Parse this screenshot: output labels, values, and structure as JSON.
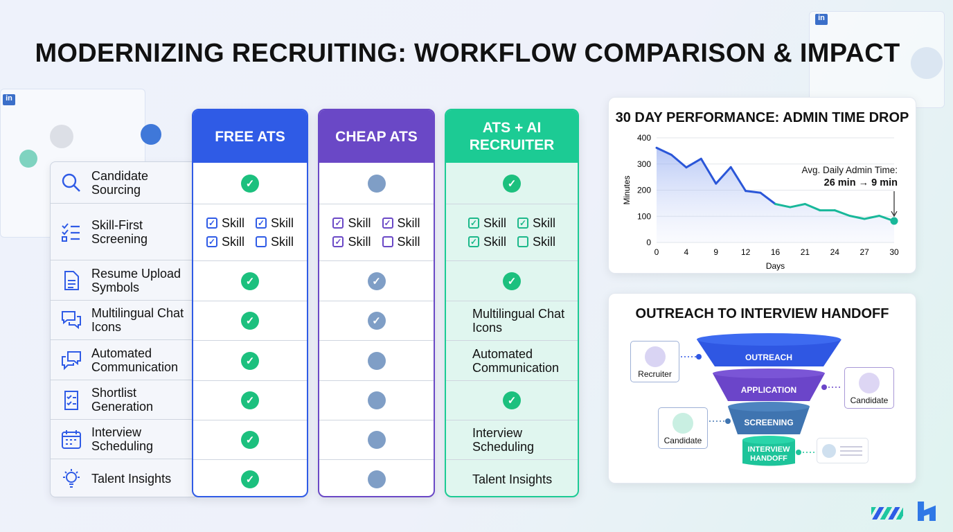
{
  "title": "MODERNIZING RECRUITING: WORKFLOW COMPARISON & IMPACT",
  "decor": {
    "linkedin_badge": "in"
  },
  "table": {
    "columns": [
      {
        "label": "FREE ATS",
        "color": "#2f5be6"
      },
      {
        "label": "CHEAP ATS",
        "color": "#6a48c6"
      },
      {
        "label": "ATS + AI RECRUITER",
        "color": "#1ccb94"
      }
    ],
    "skill_label": "Skill",
    "rows": [
      {
        "label": "Candidate Sourcing",
        "icon": "search-icon",
        "free": "check",
        "cheap": "dot",
        "ai": "check"
      },
      {
        "label": "Skill-First Screening",
        "icon": "checklist-icon",
        "free": "skills",
        "cheap": "skills",
        "ai": "skills"
      },
      {
        "label": "Resume Upload Symbols",
        "icon": "document-icon",
        "free": "check",
        "cheap": "check-gray",
        "ai": "check"
      },
      {
        "label": "Multilingual Chat Icons",
        "icon": "chat-icon",
        "free": "check",
        "cheap": "check-gray",
        "ai_text": "Multilingual Chat Icons"
      },
      {
        "label": "Automated Communication",
        "icon": "message-icon",
        "free": "check",
        "cheap": "dot",
        "ai_text": "Automated Communication"
      },
      {
        "label": "Shortlist Generation",
        "icon": "clipboard-icon",
        "free": "check",
        "cheap": "dot",
        "ai": "check"
      },
      {
        "label": "Interview Scheduling",
        "icon": "calendar-icon",
        "free": "check",
        "cheap": "dot",
        "ai_text": "Interview Scheduling"
      },
      {
        "label": "Talent Insights",
        "icon": "lightbulb-icon",
        "free": "check",
        "cheap": "dot",
        "ai_text": "Talent Insights"
      }
    ],
    "skill_states": [
      true,
      true,
      true,
      false
    ],
    "colors": {
      "check": "#1cc07e",
      "gray": "#7f9ec6"
    }
  },
  "chart_data": {
    "type": "area",
    "title": "30 DAY PERFORMANCE: ADMIN TIME DROP",
    "xlabel": "Days",
    "ylabel": "Minutes",
    "xticks": [
      0,
      4,
      9,
      12,
      16,
      21,
      24,
      27,
      30
    ],
    "yticks": [
      0,
      100,
      200,
      300,
      400
    ],
    "ylim": [
      0,
      400
    ],
    "grid": true,
    "x": [
      0,
      2,
      4,
      6.5,
      9,
      10.5,
      12,
      14,
      16,
      18.5,
      21,
      22.5,
      24,
      25.5,
      27,
      28.5,
      30
    ],
    "y": [
      362,
      335,
      287,
      320,
      225,
      288,
      197,
      190,
      147,
      135,
      147,
      123,
      123,
      102,
      90,
      102,
      82
    ],
    "colors": {
      "early": "#2a56d8",
      "late": "#19b89a"
    },
    "annotation": {
      "line1": "Avg. Daily Admin Time:",
      "line2": "26 min → 9 min"
    }
  },
  "funnel": {
    "title": "OUTREACH TO INTERVIEW HANDOFF",
    "stages": [
      "OUTREACH",
      "APPLICATION",
      "SCREENING",
      "INTERVIEW",
      "HANDOFF"
    ],
    "people": [
      "Recruiter",
      "Candidate",
      "Candidate"
    ]
  }
}
